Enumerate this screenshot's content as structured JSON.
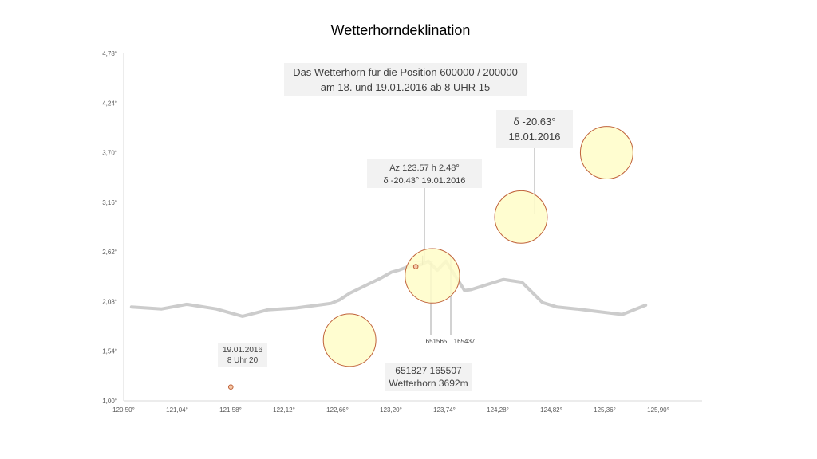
{
  "chart_data": {
    "type": "scatter",
    "title": "Wetterhorndeklination",
    "xlabel": "",
    "ylabel": "",
    "xlim": [
      120.5,
      126.44
    ],
    "ylim": [
      1.0,
      4.78
    ],
    "x_ticks": [
      "120,50°",
      "121,04°",
      "121,58°",
      "122,12°",
      "122,66°",
      "123,20°",
      "123,74°",
      "124,28°",
      "124,82°",
      "125,36°",
      "125,90°"
    ],
    "y_ticks": [
      "1,00°",
      "1,54°",
      "2,08°",
      "2,62°",
      "3,16°",
      "3,70°",
      "4,24°",
      "4,78°"
    ],
    "grid": false,
    "series": [
      {
        "kind": "line",
        "color": "#cccccc",
        "points": [
          [
            120.58,
            2.02
          ],
          [
            120.89,
            2.0
          ],
          [
            121.15,
            2.05
          ],
          [
            121.45,
            2.0
          ],
          [
            121.72,
            1.92
          ],
          [
            121.98,
            1.99
          ],
          [
            122.27,
            2.01
          ],
          [
            122.56,
            2.05
          ],
          [
            122.63,
            2.06
          ],
          [
            122.72,
            2.1
          ],
          [
            122.82,
            2.17
          ],
          [
            123.15,
            2.34
          ],
          [
            123.25,
            2.4
          ],
          [
            123.32,
            2.42
          ],
          [
            123.42,
            2.46
          ],
          [
            123.55,
            2.48
          ],
          [
            123.63,
            2.52
          ],
          [
            123.72,
            2.42
          ],
          [
            123.81,
            2.52
          ],
          [
            124.0,
            2.2
          ],
          [
            124.07,
            2.21
          ],
          [
            124.4,
            2.32
          ],
          [
            124.59,
            2.29
          ],
          [
            124.8,
            2.07
          ],
          [
            124.95,
            2.02
          ],
          [
            125.15,
            2.0
          ],
          [
            125.38,
            1.97
          ],
          [
            125.62,
            1.94
          ],
          [
            125.86,
            2.04
          ]
        ]
      },
      {
        "kind": "bubble",
        "fill": "#fffdc8",
        "stroke": "#c0623a",
        "points": [
          [
            122.82,
            1.66,
            0.27
          ],
          [
            123.67,
            2.36,
            0.28
          ],
          [
            124.58,
            3.0,
            0.27
          ],
          [
            125.46,
            3.7,
            0.27
          ]
        ]
      },
      {
        "kind": "marker",
        "fill": "#f5c9a8",
        "stroke": "#c0623a",
        "points": [
          [
            121.6,
            1.15
          ],
          [
            123.5,
            2.46
          ]
        ]
      }
    ],
    "annotations": [
      {
        "lines": [
          "Das Wetterhorn für die Position 600000 / 200000",
          "am 18. und 19.01.2016 ab 8 UHR 15"
        ]
      },
      {
        "lines": [
          "δ -20.63°",
          "18.01.2016"
        ]
      },
      {
        "lines": [
          "Az 123.57 h 2.48°",
          "δ -20.43°  19.01.2016"
        ]
      },
      {
        "lines": [
          "19.01.2016",
          "8 Uhr 20"
        ]
      },
      {
        "lines": [
          "651827  165507",
          "Wetterhorn 3692m"
        ]
      },
      {
        "lines": [
          "651565"
        ]
      },
      {
        "lines": [
          "165437"
        ]
      }
    ]
  }
}
